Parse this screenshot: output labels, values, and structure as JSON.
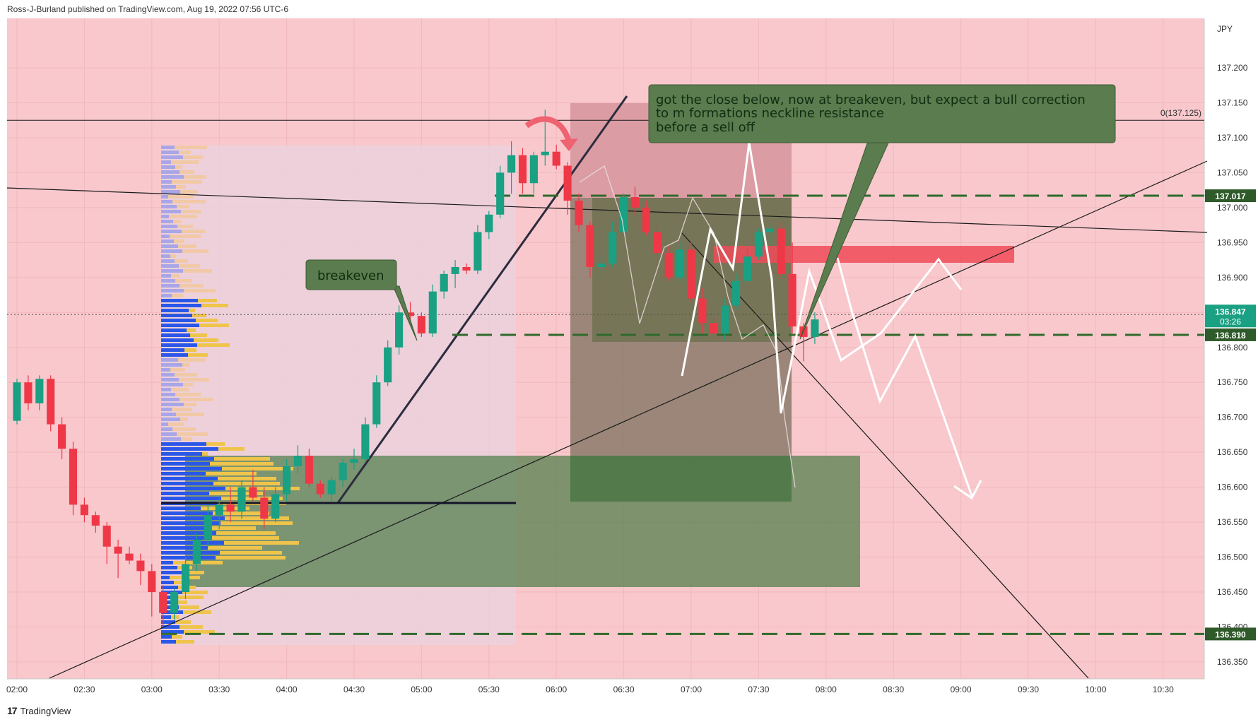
{
  "header": "Ross-J-Burland published on TradingView.com, Aug 19, 2022 07:56 UTC-6",
  "footer": {
    "brand": "TradingView",
    "logo_glyph": "17"
  },
  "colors": {
    "background": "#f8c8cc",
    "up": "#1aa082",
    "down": "#ef3847",
    "annotation_box": "#5a7c4e",
    "level_line": "#2f6a2c",
    "resistance_zone": "#f04b58",
    "support_zone": "#4f7d4a",
    "volume_buy": "#2a57e8",
    "volume_sell": "#efc44a",
    "volume_buy_faded": "#a9a6e8",
    "volume_sell_faded": "#f2c9a6"
  },
  "chart_data": {
    "type": "candlestick",
    "symbol_currency": "JPY",
    "x_tick_labels": [
      "02:00",
      "02:30",
      "03:00",
      "03:30",
      "04:00",
      "04:30",
      "05:00",
      "05:30",
      "06:00",
      "06:30",
      "07:00",
      "07:30",
      "08:00",
      "08:30",
      "09:00",
      "09:30",
      "10:00",
      "10:30"
    ],
    "y_tick_labels": [
      "137.200",
      "137.150",
      "137.100",
      "137.050",
      "137.000",
      "136.950",
      "136.900",
      "136.850",
      "136.800",
      "136.750",
      "136.700",
      "136.650",
      "136.600",
      "136.550",
      "136.500",
      "136.450",
      "136.400",
      "136.350"
    ],
    "ylim": [
      136.33,
      137.24
    ],
    "candle_interval_minutes": 5,
    "first_candle_time": "02:00",
    "candles": [
      [
        136.695,
        136.755,
        136.69,
        136.75
      ],
      [
        136.75,
        136.76,
        136.71,
        136.72
      ],
      [
        136.72,
        136.76,
        136.71,
        136.755
      ],
      [
        136.755,
        136.76,
        136.68,
        136.69
      ],
      [
        136.69,
        136.7,
        136.64,
        136.655
      ],
      [
        136.655,
        136.665,
        136.56,
        136.575
      ],
      [
        136.575,
        136.585,
        136.55,
        136.56
      ],
      [
        136.56,
        136.565,
        136.535,
        136.545
      ],
      [
        136.545,
        136.55,
        136.49,
        136.515
      ],
      [
        136.515,
        136.525,
        136.47,
        136.505
      ],
      [
        136.505,
        136.515,
        136.49,
        136.495
      ],
      [
        136.495,
        136.505,
        136.46,
        136.48
      ],
      [
        136.48,
        136.49,
        136.415,
        136.45
      ],
      [
        136.45,
        136.46,
        136.4,
        136.42
      ],
      [
        136.42,
        136.455,
        136.41,
        136.45
      ],
      [
        136.45,
        136.5,
        136.44,
        136.49
      ],
      [
        136.49,
        136.535,
        136.48,
        136.525
      ],
      [
        136.525,
        136.575,
        136.515,
        136.56
      ],
      [
        136.56,
        136.585,
        136.54,
        136.575
      ],
      [
        136.575,
        136.6,
        136.55,
        136.565
      ],
      [
        136.565,
        136.61,
        136.555,
        136.6
      ],
      [
        136.6,
        136.625,
        136.58,
        136.585
      ],
      [
        136.585,
        136.6,
        136.54,
        136.555
      ],
      [
        136.555,
        136.6,
        136.55,
        136.59
      ],
      [
        136.59,
        136.64,
        136.58,
        136.63
      ],
      [
        136.63,
        136.66,
        136.62,
        136.645
      ],
      [
        136.645,
        136.655,
        136.6,
        136.605
      ],
      [
        136.605,
        136.61,
        136.585,
        136.59
      ],
      [
        136.59,
        136.615,
        136.58,
        136.61
      ],
      [
        136.61,
        136.64,
        136.6,
        136.635
      ],
      [
        136.635,
        136.655,
        136.625,
        136.64
      ],
      [
        136.64,
        136.7,
        136.635,
        136.69
      ],
      [
        136.69,
        136.76,
        136.685,
        136.75
      ],
      [
        136.75,
        136.81,
        136.745,
        136.8
      ],
      [
        136.8,
        136.86,
        136.79,
        136.85
      ],
      [
        136.85,
        136.865,
        136.835,
        136.845
      ],
      [
        136.845,
        136.85,
        136.815,
        136.82
      ],
      [
        136.82,
        136.89,
        136.815,
        136.88
      ],
      [
        136.88,
        136.91,
        136.87,
        136.905
      ],
      [
        136.905,
        136.925,
        136.885,
        136.915
      ],
      [
        136.915,
        136.92,
        136.905,
        136.91
      ],
      [
        136.91,
        136.975,
        136.905,
        136.965
      ],
      [
        136.965,
        136.995,
        136.955,
        136.99
      ],
      [
        136.99,
        137.06,
        136.985,
        137.05
      ],
      [
        137.05,
        137.095,
        137.02,
        137.075
      ],
      [
        137.075,
        137.085,
        137.02,
        137.035
      ],
      [
        137.035,
        137.08,
        137.02,
        137.075
      ],
      [
        137.075,
        137.14,
        137.06,
        137.08
      ],
      [
        137.08,
        137.09,
        137.055,
        137.06
      ],
      [
        137.06,
        137.065,
        136.99,
        137.01
      ],
      [
        137.01,
        137.02,
        136.965,
        136.975
      ],
      [
        136.975,
        136.98,
        136.9,
        136.915
      ],
      [
        136.915,
        136.93,
        136.9,
        136.92
      ],
      [
        136.92,
        136.98,
        136.915,
        136.965
      ],
      [
        136.965,
        137.02,
        136.96,
        137.015
      ],
      [
        137.015,
        137.03,
        136.99,
        137.0
      ],
      [
        137.0,
        137.01,
        136.96,
        136.965
      ],
      [
        136.965,
        136.975,
        136.915,
        136.935
      ],
      [
        136.935,
        136.945,
        136.895,
        136.9
      ],
      [
        136.9,
        136.95,
        136.895,
        136.94
      ],
      [
        136.94,
        136.95,
        136.865,
        136.87
      ],
      [
        136.87,
        136.885,
        136.82,
        136.835
      ],
      [
        136.835,
        136.845,
        136.81,
        136.82
      ],
      [
        136.82,
        136.87,
        136.81,
        136.86
      ],
      [
        136.86,
        136.905,
        136.855,
        136.895
      ],
      [
        136.895,
        136.94,
        136.89,
        136.93
      ],
      [
        136.93,
        136.97,
        136.925,
        136.965
      ],
      [
        136.965,
        136.975,
        136.945,
        136.97
      ],
      [
        136.97,
        136.98,
        136.9,
        136.905
      ],
      [
        136.905,
        136.95,
        136.82,
        136.83
      ],
      [
        136.83,
        136.835,
        136.78,
        136.815
      ],
      [
        136.815,
        136.85,
        136.805,
        136.84
      ]
    ],
    "horizontal_levels": [
      {
        "price": 137.125,
        "label": "0(137.125)"
      },
      {
        "price": 137.017,
        "label": "137.017"
      },
      {
        "price": 136.818,
        "label": "136.818"
      },
      {
        "price": 136.39,
        "label": "136.390"
      }
    ],
    "current_price": {
      "price": 136.847,
      "label": "136.847",
      "countdown": "03:26"
    },
    "annotations": {
      "breakeven": "breakeven",
      "note_lines": [
        "got the close below, now at breakeven, but expect a bull correction",
        "to m formations neckline resistance",
        "before a sell off"
      ]
    }
  }
}
